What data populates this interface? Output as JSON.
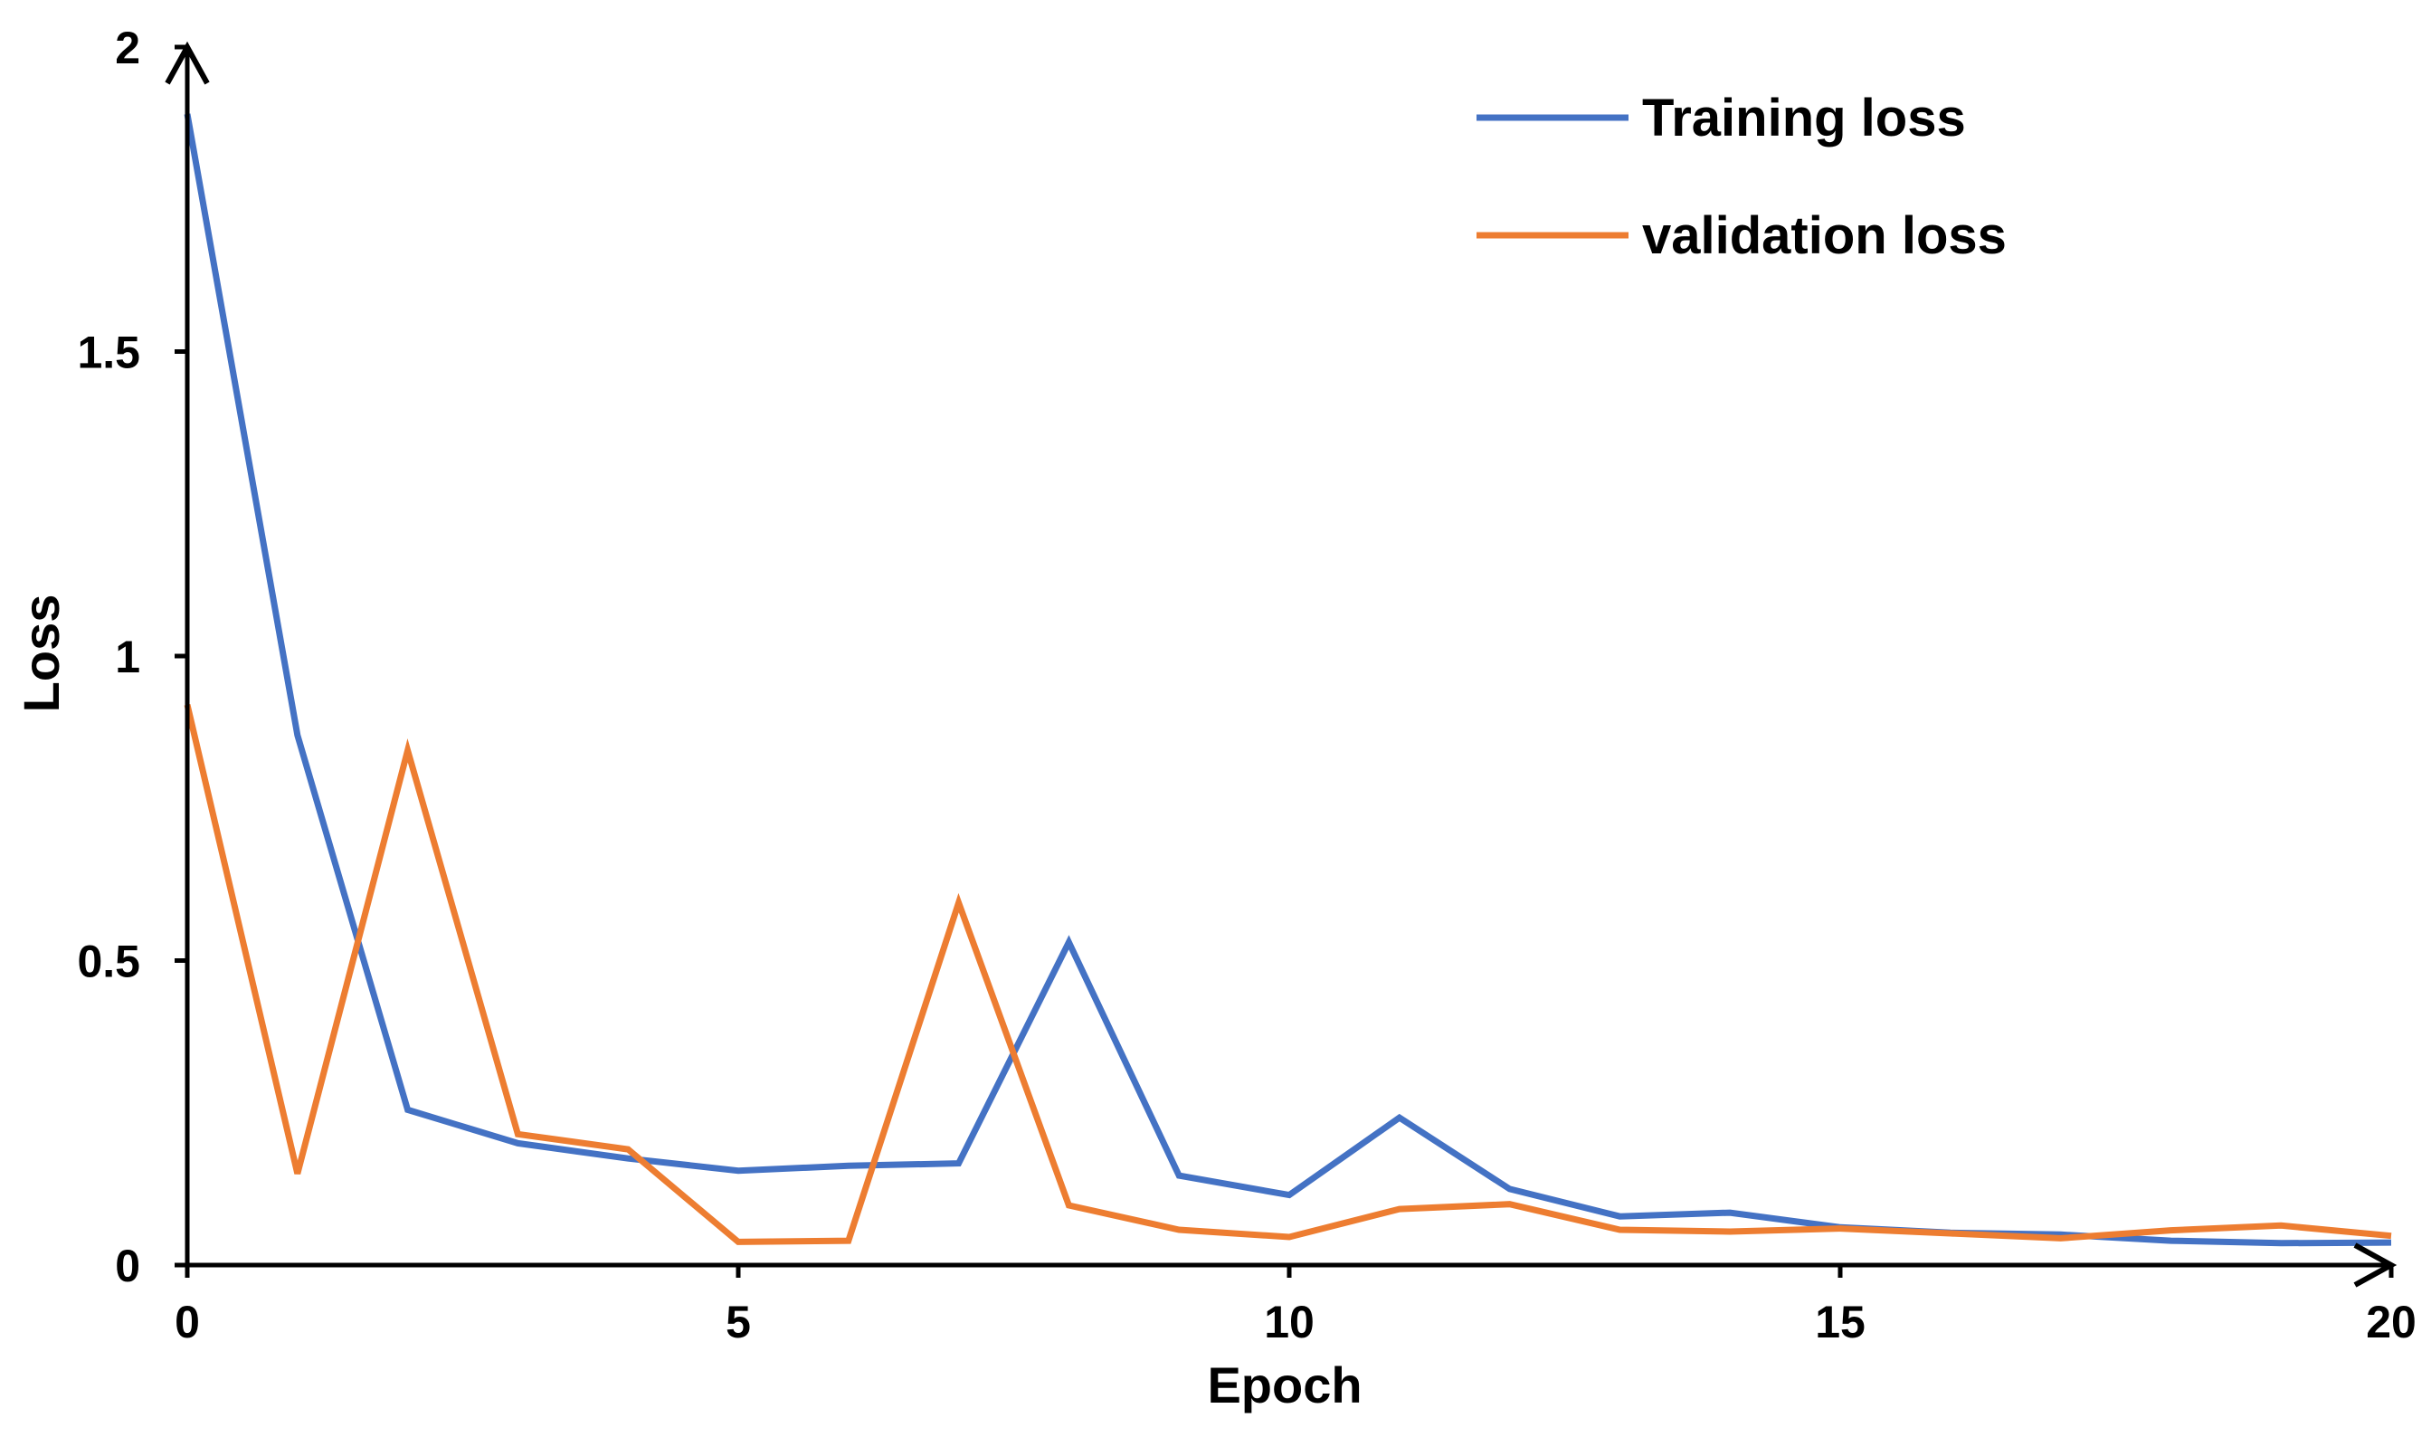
{
  "chart_data": {
    "type": "line",
    "title": "",
    "xlabel": "Epoch",
    "ylabel": "Loss",
    "xlim": [
      0,
      20
    ],
    "ylim": [
      0,
      2
    ],
    "x_ticks": [
      0,
      5,
      10,
      15,
      20
    ],
    "x_tick_labels": [
      "0",
      "5",
      "10",
      "15",
      "20"
    ],
    "y_ticks": [
      0,
      0.5,
      1,
      1.5,
      2
    ],
    "y_tick_labels": [
      "0",
      "0.5",
      "1",
      "1.5",
      "2"
    ],
    "grid": false,
    "legend_position": "top-right",
    "x": [
      0,
      1,
      2,
      3,
      4,
      5,
      6,
      7,
      8,
      9,
      10,
      11,
      12,
      13,
      14,
      15,
      16,
      17,
      18,
      19,
      20
    ],
    "series": [
      {
        "name": "Training loss",
        "color": "#4472C4",
        "values": [
          1.89,
          0.87,
          0.255,
          0.2,
          0.175,
          0.155,
          0.163,
          0.167,
          0.53,
          0.147,
          0.115,
          0.242,
          0.125,
          0.08,
          0.086,
          0.062,
          0.053,
          0.05,
          0.04,
          0.036,
          0.037
        ]
      },
      {
        "name": "validation loss",
        "color": "#ED7D31",
        "values": [
          0.92,
          0.15,
          0.845,
          0.215,
          0.19,
          0.038,
          0.04,
          0.595,
          0.098,
          0.058,
          0.046,
          0.092,
          0.1,
          0.058,
          0.055,
          0.06,
          0.052,
          0.044,
          0.057,
          0.065,
          0.048
        ]
      }
    ]
  }
}
